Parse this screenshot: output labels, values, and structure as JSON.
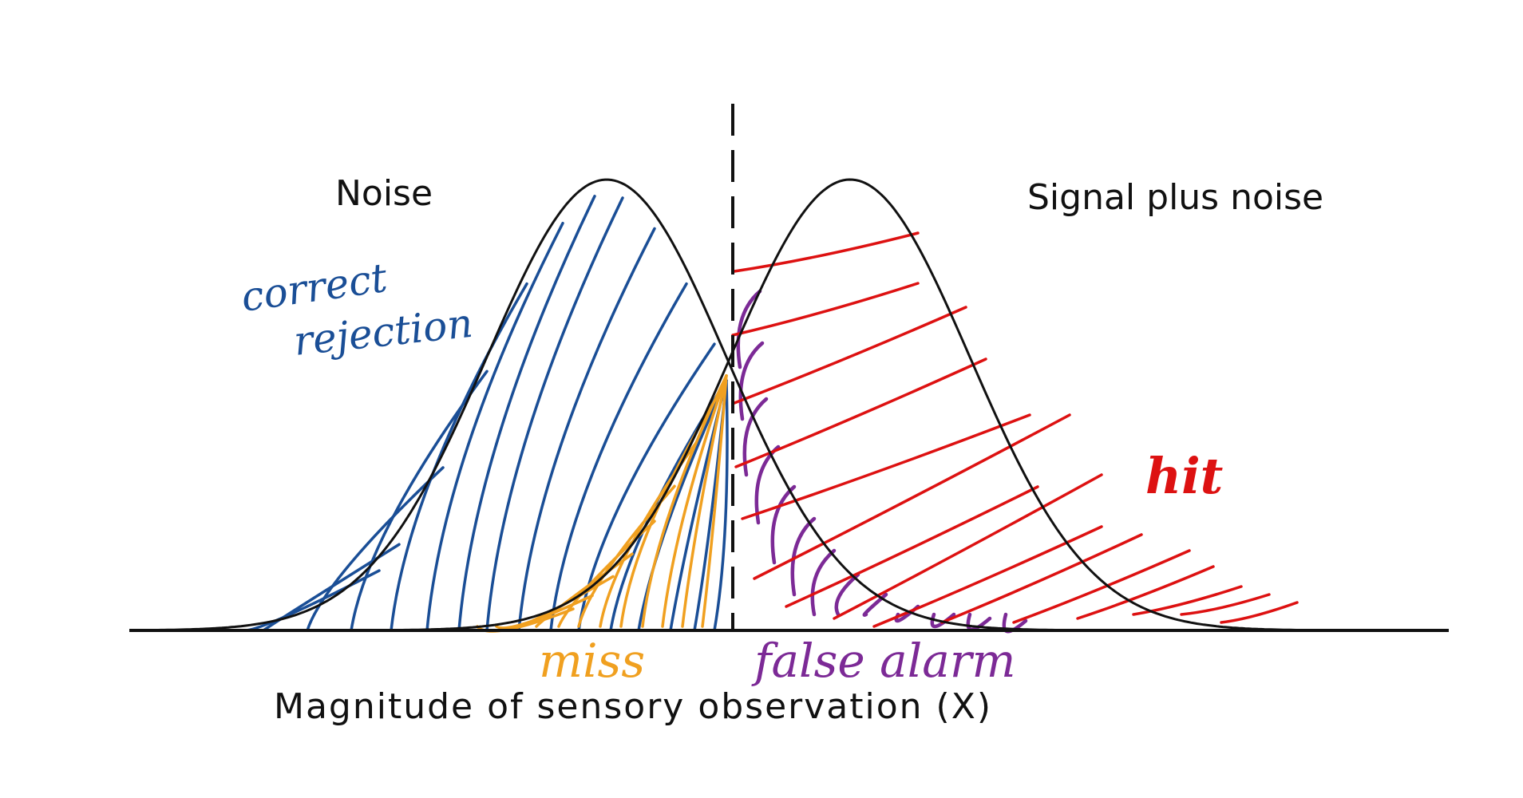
{
  "labels": {
    "noise": "Noise",
    "signal": "Signal plus noise",
    "xaxis": "Magnitude of sensory observation (X)"
  },
  "annotations": {
    "correct_rejection_line1": "correct",
    "correct_rejection_line2": "rejection",
    "hit": "hit",
    "miss": "miss",
    "false_alarm": "false alarm"
  },
  "colors": {
    "correct_rejection": "#1a4e96",
    "miss": "#f0a020",
    "false_alarm": "#7c2a96",
    "hit": "#dd1111",
    "curve": "#111111"
  }
}
